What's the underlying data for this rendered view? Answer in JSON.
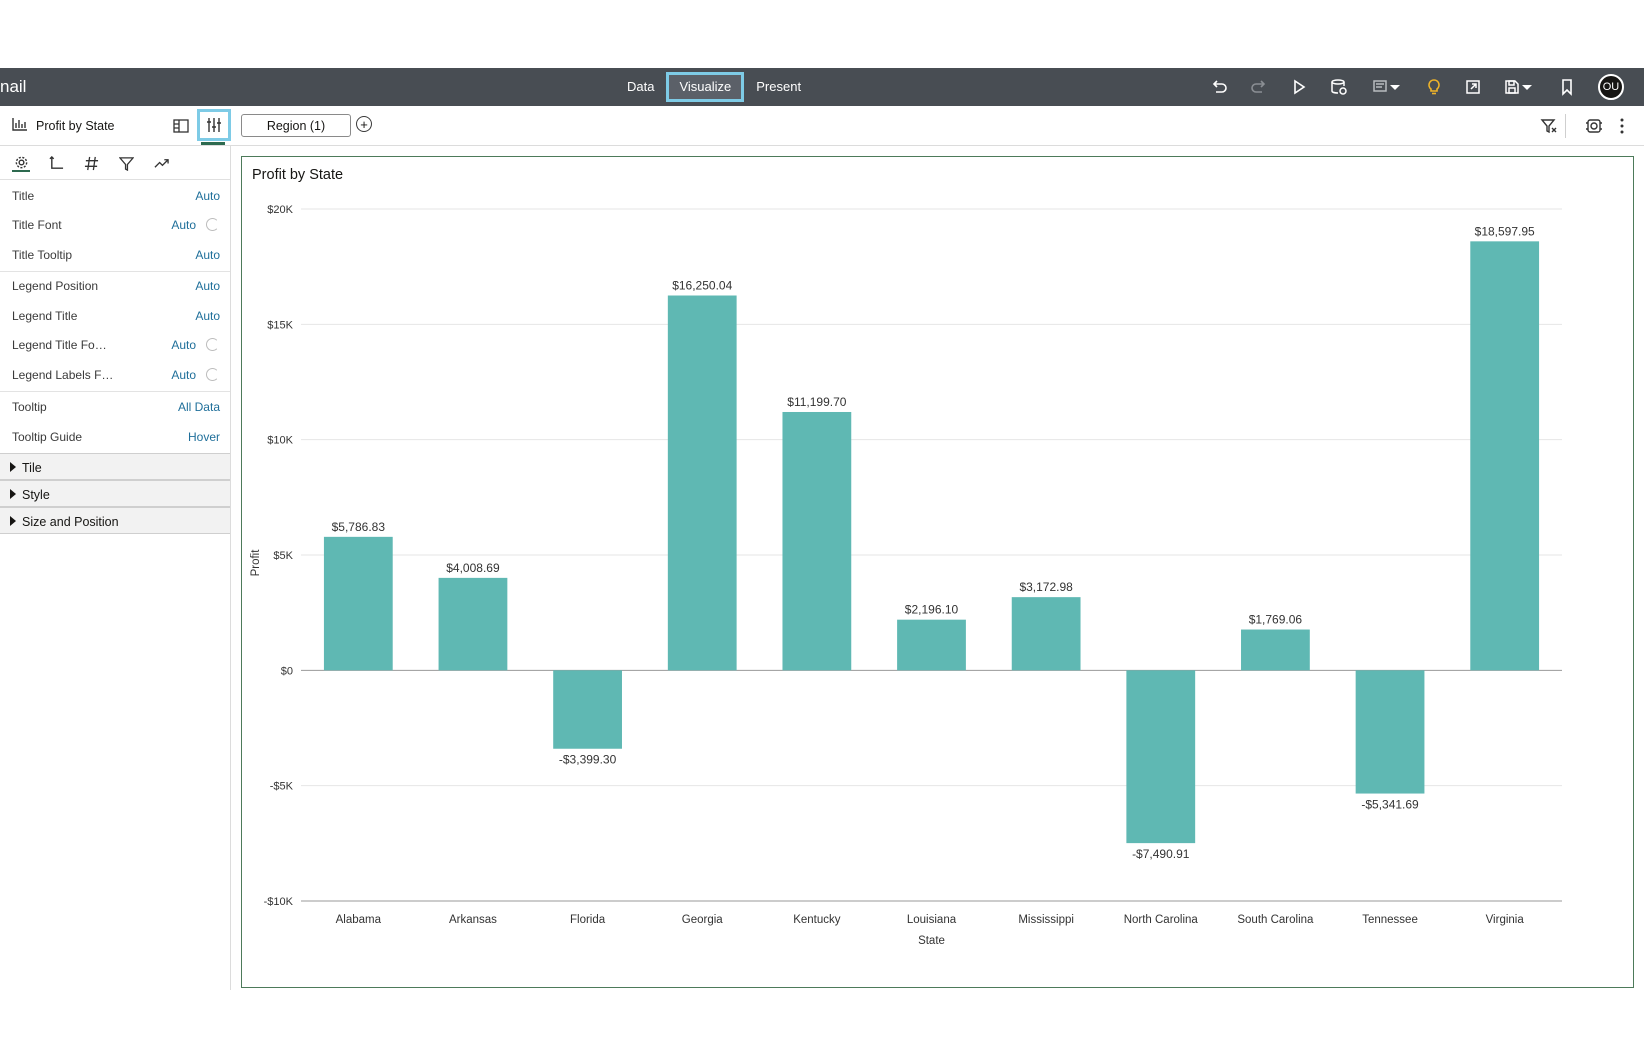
{
  "app": {
    "name_fragment": "nail"
  },
  "modes": {
    "data": "Data",
    "visualize": "Visualize",
    "present": "Present"
  },
  "user": {
    "initials": "OU"
  },
  "toolbar_icons": [
    "undo-icon",
    "redo-icon",
    "play-icon",
    "data-refresh-icon",
    "narrate-icon",
    "insights-lightbulb-icon",
    "export-icon",
    "save-icon",
    "bookmark-icon"
  ],
  "viz_selector": {
    "title": "Profit by State"
  },
  "canvas": {
    "tab_label": "Region (1)"
  },
  "properties": {
    "tabs": [
      "general-tab",
      "axis-tab",
      "values-tab",
      "filter-tab",
      "analytics-tab"
    ],
    "rows": [
      {
        "label": "Title",
        "value": "Auto"
      },
      {
        "label": "Title Font",
        "value": "Auto"
      },
      {
        "label": "Title Tooltip",
        "value": "Auto"
      },
      {
        "label": "Legend Position",
        "value": "Auto"
      },
      {
        "label": "Legend Title",
        "value": "Auto"
      },
      {
        "label": "Legend Title Fo…",
        "value": "Auto"
      },
      {
        "label": "Legend Labels F…",
        "value": "Auto"
      },
      {
        "label": "Tooltip",
        "value": "All Data"
      },
      {
        "label": "Tooltip Guide",
        "value": "Hover"
      }
    ],
    "sections": [
      "Tile",
      "Style",
      "Size and Position"
    ]
  },
  "colors": {
    "bar": "#5fb8b3",
    "header": "#484d53",
    "accent": "#7ecbe6",
    "link": "#1f6f9a"
  },
  "chart_data": {
    "type": "bar",
    "title": "Profit by State",
    "xlabel": "State",
    "ylabel": "Profit",
    "categories": [
      "Alabama",
      "Arkansas",
      "Florida",
      "Georgia",
      "Kentucky",
      "Louisiana",
      "Mississippi",
      "North Carolina",
      "South Carolina",
      "Tennessee",
      "Virginia"
    ],
    "values": [
      5786.83,
      4008.69,
      -3399.3,
      16250.04,
      11199.7,
      2196.1,
      3172.98,
      -7490.91,
      1769.06,
      -5341.69,
      18597.95
    ],
    "value_labels": [
      "$5,786.83",
      "$4,008.69",
      "-$3,399.30",
      "$16,250.04",
      "$11,199.70",
      "$2,196.10",
      "$3,172.98",
      "-$7,490.91",
      "$1,769.06",
      "-$5,341.69",
      "$18,597.95"
    ],
    "ylim": [
      -10000,
      20000
    ],
    "yticks": [
      -10000,
      -5000,
      0,
      5000,
      10000,
      15000,
      20000
    ],
    "ytick_labels": [
      "-$10K",
      "-$5K",
      "$0",
      "$5K",
      "$10K",
      "$15K",
      "$20K"
    ],
    "grid": true
  }
}
